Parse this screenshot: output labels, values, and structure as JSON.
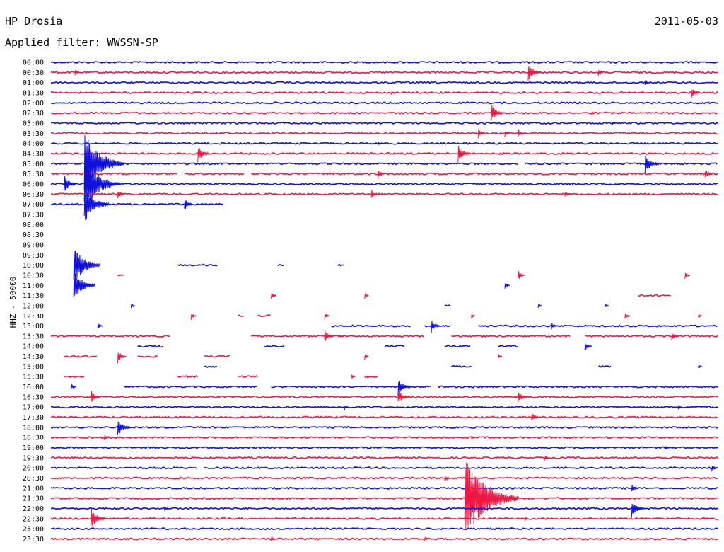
{
  "header": {
    "station": "HP Drosia",
    "date": "2011-05-03",
    "filter": "Applied filter: WWSSN-SP"
  },
  "axis": {
    "vertical_label": "HHZ - 50000"
  },
  "colors": {
    "blue": "#1010dd",
    "red": "#ee1844"
  },
  "chart_data": {
    "type": "helicorder",
    "row_minutes": 30,
    "rows": [
      {
        "time": "00:00",
        "color": "blue",
        "segments": [
          [
            0,
            1
          ]
        ],
        "events": []
      },
      {
        "time": "00:30",
        "color": "red",
        "segments": [
          [
            0,
            1
          ]
        ],
        "events": [
          [
            0.036,
            6
          ],
          [
            0.715,
            14
          ],
          [
            0.82,
            6
          ]
        ]
      },
      {
        "time": "01:00",
        "color": "blue",
        "segments": [
          [
            0,
            1
          ]
        ],
        "events": [
          [
            0.89,
            5
          ]
        ]
      },
      {
        "time": "01:30",
        "color": "red",
        "segments": [
          [
            0,
            1
          ]
        ],
        "events": [
          [
            0.51,
            3
          ],
          [
            0.96,
            9
          ]
        ]
      },
      {
        "time": "02:00",
        "color": "blue",
        "segments": [
          [
            0,
            1
          ]
        ],
        "events": []
      },
      {
        "time": "02:30",
        "color": "red",
        "segments": [
          [
            0,
            1
          ]
        ],
        "events": [
          [
            0.66,
            14
          ],
          [
            0.81,
            4
          ]
        ]
      },
      {
        "time": "03:00",
        "color": "blue",
        "segments": [
          [
            0,
            1
          ]
        ],
        "events": [
          [
            0.84,
            4
          ]
        ]
      },
      {
        "time": "03:30",
        "color": "red",
        "segments": [
          [
            0,
            1
          ]
        ],
        "events": [
          [
            0.64,
            8
          ],
          [
            0.7,
            8
          ],
          [
            0.68,
            6
          ]
        ]
      },
      {
        "time": "04:00",
        "color": "blue",
        "segments": [
          [
            0,
            1
          ]
        ],
        "events": [
          [
            0.49,
            3
          ]
        ]
      },
      {
        "time": "04:30",
        "color": "red",
        "segments": [
          [
            0,
            1
          ]
        ],
        "events": [
          [
            0.22,
            13
          ],
          [
            0.61,
            14
          ]
        ]
      },
      {
        "time": "05:00",
        "color": "blue",
        "segments": [
          [
            0,
            0.7
          ],
          [
            0.71,
            1
          ]
        ],
        "events": [
          [
            0.05,
            45
          ],
          [
            0.89,
            16
          ]
        ]
      },
      {
        "time": "05:30",
        "color": "red",
        "segments": [
          [
            0,
            0.19
          ],
          [
            0.2,
            0.29
          ],
          [
            0.3,
            1
          ]
        ],
        "events": [
          [
            0.49,
            8
          ],
          [
            0.98,
            8
          ]
        ]
      },
      {
        "time": "06:00",
        "color": "blue",
        "segments": [
          [
            0,
            1
          ]
        ],
        "events": [
          [
            0.05,
            40
          ],
          [
            0.02,
            14
          ]
        ]
      },
      {
        "time": "06:30",
        "color": "red",
        "segments": [
          [
            0,
            1
          ]
        ],
        "events": [
          [
            0.1,
            8
          ],
          [
            0.48,
            8
          ],
          [
            0.77,
            6
          ]
        ]
      },
      {
        "time": "07:00",
        "color": "blue",
        "segments": [
          [
            0,
            0.26
          ]
        ],
        "events": [
          [
            0.05,
            28
          ],
          [
            0.2,
            10
          ]
        ]
      },
      {
        "time": "07:30",
        "color": "red",
        "segments": [],
        "events": []
      },
      {
        "time": "08:00",
        "color": "blue",
        "segments": [],
        "events": []
      },
      {
        "time": "08:30",
        "color": "red",
        "segments": [],
        "events": []
      },
      {
        "time": "09:00",
        "color": "blue",
        "segments": [],
        "events": []
      },
      {
        "time": "09:30",
        "color": "red",
        "segments": [],
        "events": []
      },
      {
        "time": "10:00",
        "color": "blue",
        "segments": [
          [
            0.04,
            0.045
          ],
          [
            0.19,
            0.25
          ],
          [
            0.34,
            0.35
          ],
          [
            0.43,
            0.44
          ]
        ],
        "events": [
          [
            0.034,
            30
          ]
        ]
      },
      {
        "time": "10:30",
        "color": "red",
        "segments": [
          [
            0.1,
            0.11
          ]
        ],
        "events": [
          [
            0.7,
            8
          ],
          [
            0.95,
            6
          ]
        ]
      },
      {
        "time": "11:00",
        "color": "blue",
        "segments": [],
        "events": [
          [
            0.034,
            24
          ],
          [
            0.68,
            6
          ]
        ]
      },
      {
        "time": "11:30",
        "color": "red",
        "segments": [
          [
            0.88,
            0.93
          ]
        ],
        "events": [
          [
            0.33,
            6
          ],
          [
            0.47,
            5
          ]
        ]
      },
      {
        "time": "12:00",
        "color": "blue",
        "segments": [
          [
            0.59,
            0.6
          ]
        ],
        "events": [
          [
            0.12,
            4
          ],
          [
            0.73,
            4
          ],
          [
            0.83,
            4
          ]
        ]
      },
      {
        "time": "12:30",
        "color": "red",
        "segments": [
          [
            0.28,
            0.29
          ],
          [
            0.31,
            0.33
          ]
        ],
        "events": [
          [
            0.21,
            6
          ],
          [
            0.41,
            6
          ],
          [
            0.63,
            4
          ],
          [
            0.86,
            6
          ],
          [
            0.97,
            4
          ]
        ]
      },
      {
        "time": "13:00",
        "color": "blue",
        "segments": [
          [
            0.42,
            0.54
          ],
          [
            0.56,
            0.6
          ],
          [
            0.64,
            1
          ]
        ],
        "events": [
          [
            0.07,
            6
          ],
          [
            0.57,
            10
          ],
          [
            0.75,
            6
          ]
        ]
      },
      {
        "time": "13:30",
        "color": "red",
        "segments": [
          [
            0,
            0.18
          ],
          [
            0.3,
            0.44
          ],
          [
            0.43,
            0.56
          ],
          [
            0.6,
            0.78
          ],
          [
            0.8,
            1
          ]
        ],
        "events": [
          [
            0.41,
            10
          ],
          [
            0.93,
            8
          ]
        ]
      },
      {
        "time": "14:00",
        "color": "blue",
        "segments": [
          [
            0.13,
            0.17
          ],
          [
            0.32,
            0.35
          ],
          [
            0.5,
            0.53
          ],
          [
            0.59,
            0.63
          ],
          [
            0.67,
            0.7
          ]
        ],
        "events": [
          [
            0.8,
            8
          ]
        ]
      },
      {
        "time": "14:30",
        "color": "red",
        "segments": [
          [
            0.02,
            0.07
          ],
          [
            0.13,
            0.16
          ],
          [
            0.23,
            0.27
          ]
        ],
        "events": [
          [
            0.1,
            10
          ],
          [
            0.47,
            5
          ],
          [
            0.67,
            5
          ]
        ]
      },
      {
        "time": "15:00",
        "color": "blue",
        "segments": [
          [
            0.23,
            0.25
          ],
          [
            0.6,
            0.63
          ],
          [
            0.82,
            0.84
          ]
        ],
        "events": [
          [
            0.97,
            4
          ]
        ]
      },
      {
        "time": "15:30",
        "color": "red",
        "segments": [
          [
            0.02,
            0.05
          ],
          [
            0.19,
            0.22
          ],
          [
            0.28,
            0.31
          ],
          [
            0.47,
            0.49
          ]
        ],
        "events": [
          [
            0.45,
            5
          ]
        ]
      },
      {
        "time": "16:00",
        "color": "blue",
        "segments": [
          [
            0.11,
            0.31
          ],
          [
            0.33,
            0.54
          ],
          [
            0.54,
            0.57
          ],
          [
            0.58,
            1
          ]
        ],
        "events": [
          [
            0.52,
            14
          ],
          [
            0.03,
            6
          ]
        ]
      },
      {
        "time": "16:30",
        "color": "red",
        "segments": [
          [
            0,
            1
          ]
        ],
        "events": [
          [
            0.06,
            10
          ],
          [
            0.52,
            12
          ],
          [
            0.7,
            10
          ]
        ]
      },
      {
        "time": "17:00",
        "color": "blue",
        "segments": [
          [
            0,
            1
          ]
        ],
        "events": [
          [
            0.44,
            5
          ],
          [
            0.94,
            4
          ]
        ]
      },
      {
        "time": "17:30",
        "color": "red",
        "segments": [
          [
            0,
            1
          ]
        ],
        "events": [
          [
            0.72,
            8
          ]
        ]
      },
      {
        "time": "18:00",
        "color": "blue",
        "segments": [
          [
            0,
            1
          ]
        ],
        "events": [
          [
            0.1,
            14
          ]
        ]
      },
      {
        "time": "18:30",
        "color": "red",
        "segments": [
          [
            0,
            1
          ]
        ],
        "events": [
          [
            0.08,
            6
          ],
          [
            0.63,
            4
          ]
        ]
      },
      {
        "time": "19:00",
        "color": "blue",
        "segments": [
          [
            0,
            1
          ]
        ],
        "events": [
          [
            0.92,
            4
          ]
        ]
      },
      {
        "time": "19:30",
        "color": "red",
        "segments": [
          [
            0,
            1
          ]
        ],
        "events": [
          [
            0.74,
            4
          ]
        ]
      },
      {
        "time": "20:00",
        "color": "blue",
        "segments": [
          [
            0,
            0.22
          ],
          [
            0.23,
            1
          ]
        ],
        "events": [
          [
            0.99,
            6
          ]
        ]
      },
      {
        "time": "20:30",
        "color": "red",
        "segments": [
          [
            0,
            1
          ]
        ],
        "events": [
          [
            0.59,
            6
          ]
        ]
      },
      {
        "time": "21:00",
        "color": "blue",
        "segments": [
          [
            0,
            1
          ]
        ],
        "events": [
          [
            0.87,
            8
          ]
        ]
      },
      {
        "time": "21:30",
        "color": "red",
        "segments": [
          [
            0,
            1
          ]
        ],
        "events": [
          [
            0.62,
            60
          ]
        ]
      },
      {
        "time": "22:00",
        "color": "blue",
        "segments": [
          [
            0,
            1
          ]
        ],
        "events": [
          [
            0.87,
            14
          ],
          [
            0.17,
            4
          ]
        ]
      },
      {
        "time": "22:30",
        "color": "red",
        "segments": [
          [
            0,
            1
          ]
        ],
        "events": [
          [
            0.06,
            16
          ],
          [
            0.71,
            4
          ]
        ]
      },
      {
        "time": "23:00",
        "color": "blue",
        "segments": [
          [
            0,
            1
          ]
        ],
        "events": []
      },
      {
        "time": "23:30",
        "color": "red",
        "segments": [
          [
            0,
            1
          ]
        ],
        "events": [
          [
            0.33,
            5
          ],
          [
            0.56,
            4
          ]
        ]
      }
    ]
  }
}
